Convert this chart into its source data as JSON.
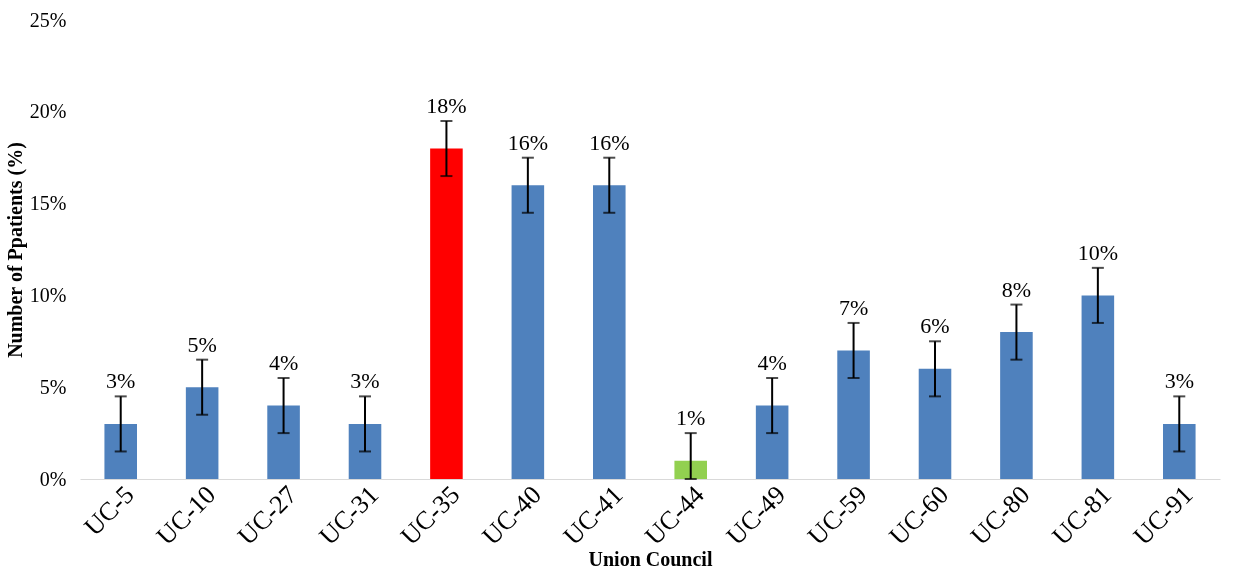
{
  "chart_data": {
    "type": "bar",
    "xlabel": "Union Council",
    "ylabel": "Number of Ppatients (%)",
    "categories": [
      "UC-5",
      "UC-10",
      "UC-27",
      "UC-31",
      "UC-35",
      "UC-40",
      "UC-41",
      "UC-44",
      "UC-49",
      "UC-59",
      "UC-60",
      "UC-80",
      "UC-81",
      "UC-91"
    ],
    "values": [
      3,
      5,
      4,
      3,
      18,
      16,
      16,
      1,
      4,
      7,
      6,
      8,
      10,
      3
    ],
    "colors": [
      "#4f81bd",
      "#4f81bd",
      "#4f81bd",
      "#4f81bd",
      "#ff0000",
      "#4f81bd",
      "#4f81bd",
      "#92d050",
      "#4f81bd",
      "#4f81bd",
      "#4f81bd",
      "#4f81bd",
      "#4f81bd",
      "#4f81bd"
    ],
    "errors": [
      1.5,
      1.5,
      1.5,
      1.5,
      1.5,
      1.5,
      1.5,
      [
        0,
        2.5
      ],
      1.5,
      1.5,
      1.5,
      1.5,
      1.5,
      1.5
    ],
    "value_labels": [
      "3%",
      "5%",
      "4%",
      "3%",
      "18%",
      "16%",
      "16%",
      "1%",
      "4%",
      "7%",
      "6%",
      "8%",
      "10%",
      "3%"
    ],
    "ylim": [
      0,
      25
    ],
    "yticks": [
      {
        "value": 0,
        "label": "0%"
      },
      {
        "value": 5,
        "label": "5%"
      },
      {
        "value": 10,
        "label": "10%"
      },
      {
        "value": 15,
        "label": "15%"
      },
      {
        "value": 20,
        "label": "20%"
      },
      {
        "value": 25,
        "label": "25%"
      }
    ],
    "grid": false
  }
}
